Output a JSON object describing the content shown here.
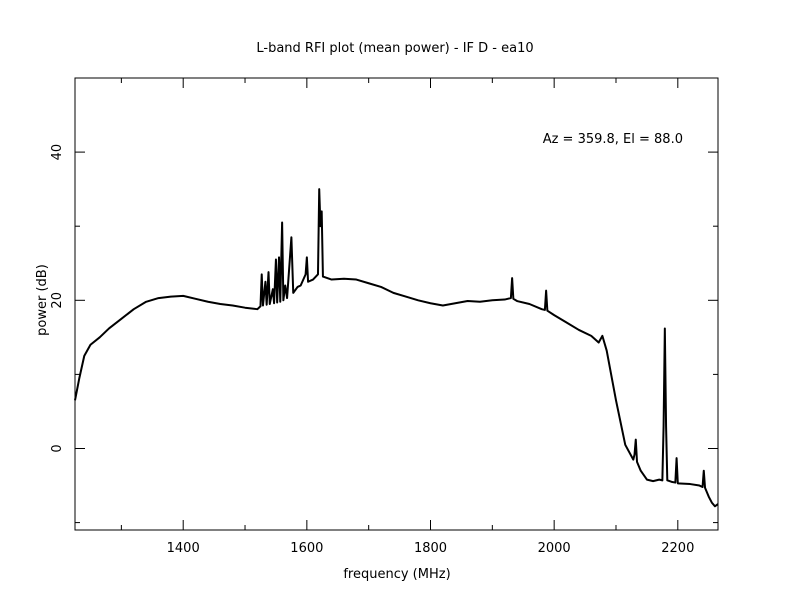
{
  "chart_data": {
    "type": "line",
    "title": "L-band RFI plot (mean power) - IF D - ea10",
    "xlabel": "frequency (MHz)",
    "ylabel": "power (dB)",
    "annotation": "Az = 359.8, El = 88.0",
    "xlim": [
      1225,
      2265
    ],
    "ylim": [
      -11,
      50
    ],
    "x_ticks": [
      1400,
      1600,
      1800,
      2000,
      2200
    ],
    "y_ticks": [
      0,
      20,
      40
    ],
    "line_color": "#000000",
    "grid": false,
    "series": [
      {
        "name": "",
        "points": [
          [
            1225,
            6.5
          ],
          [
            1232,
            9.5
          ],
          [
            1240,
            12.5
          ],
          [
            1250,
            14.0
          ],
          [
            1265,
            15.0
          ],
          [
            1280,
            16.2
          ],
          [
            1300,
            17.5
          ],
          [
            1320,
            18.8
          ],
          [
            1340,
            19.8
          ],
          [
            1360,
            20.3
          ],
          [
            1380,
            20.5
          ],
          [
            1400,
            20.6
          ],
          [
            1420,
            20.2
          ],
          [
            1440,
            19.8
          ],
          [
            1460,
            19.5
          ],
          [
            1480,
            19.3
          ],
          [
            1500,
            19.0
          ],
          [
            1520,
            18.8
          ],
          [
            1525,
            19.2
          ],
          [
            1527,
            23.5
          ],
          [
            1529,
            19.3
          ],
          [
            1533,
            22.5
          ],
          [
            1535,
            19.4
          ],
          [
            1538,
            23.8
          ],
          [
            1540,
            19.5
          ],
          [
            1545,
            21.5
          ],
          [
            1547,
            19.6
          ],
          [
            1550,
            25.5
          ],
          [
            1552,
            19.7
          ],
          [
            1555,
            25.8
          ],
          [
            1557,
            19.8
          ],
          [
            1560,
            30.5
          ],
          [
            1562,
            20.0
          ],
          [
            1565,
            22.0
          ],
          [
            1568,
            20.3
          ],
          [
            1575,
            28.5
          ],
          [
            1578,
            21.0
          ],
          [
            1585,
            21.8
          ],
          [
            1590,
            22.0
          ],
          [
            1598,
            23.5
          ],
          [
            1600,
            25.8
          ],
          [
            1602,
            22.5
          ],
          [
            1610,
            22.8
          ],
          [
            1618,
            23.5
          ],
          [
            1620,
            35.0
          ],
          [
            1622,
            30.0
          ],
          [
            1624,
            32.0
          ],
          [
            1626,
            23.2
          ],
          [
            1640,
            22.8
          ],
          [
            1660,
            22.9
          ],
          [
            1680,
            22.8
          ],
          [
            1700,
            22.3
          ],
          [
            1720,
            21.8
          ],
          [
            1740,
            21.0
          ],
          [
            1760,
            20.5
          ],
          [
            1780,
            20.0
          ],
          [
            1800,
            19.6
          ],
          [
            1820,
            19.3
          ],
          [
            1840,
            19.6
          ],
          [
            1860,
            19.9
          ],
          [
            1880,
            19.8
          ],
          [
            1900,
            20.0
          ],
          [
            1920,
            20.1
          ],
          [
            1930,
            20.3
          ],
          [
            1932,
            23.0
          ],
          [
            1934,
            20.2
          ],
          [
            1940,
            19.9
          ],
          [
            1960,
            19.5
          ],
          [
            1980,
            18.8
          ],
          [
            1985,
            18.7
          ],
          [
            1987,
            21.3
          ],
          [
            1989,
            18.6
          ],
          [
            2000,
            18.0
          ],
          [
            2020,
            17.0
          ],
          [
            2040,
            16.0
          ],
          [
            2060,
            15.2
          ],
          [
            2072,
            14.3
          ],
          [
            2078,
            15.2
          ],
          [
            2085,
            13.2
          ],
          [
            2100,
            6.5
          ],
          [
            2115,
            0.5
          ],
          [
            2128,
            -1.5
          ],
          [
            2130,
            -0.8
          ],
          [
            2132,
            1.2
          ],
          [
            2134,
            -1.8
          ],
          [
            2140,
            -3.0
          ],
          [
            2150,
            -4.2
          ],
          [
            2160,
            -4.4
          ],
          [
            2170,
            -4.2
          ],
          [
            2175,
            -4.3
          ],
          [
            2177,
            3.0
          ],
          [
            2179,
            16.2
          ],
          [
            2181,
            3.0
          ],
          [
            2183,
            -4.3
          ],
          [
            2190,
            -4.5
          ],
          [
            2196,
            -4.6
          ],
          [
            2198,
            -1.3
          ],
          [
            2200,
            -4.7
          ],
          [
            2220,
            -4.8
          ],
          [
            2235,
            -5.0
          ],
          [
            2240,
            -5.2
          ],
          [
            2242,
            -3.0
          ],
          [
            2244,
            -5.3
          ],
          [
            2250,
            -6.5
          ],
          [
            2255,
            -7.3
          ],
          [
            2260,
            -7.8
          ],
          [
            2265,
            -7.5
          ]
        ]
      }
    ]
  }
}
